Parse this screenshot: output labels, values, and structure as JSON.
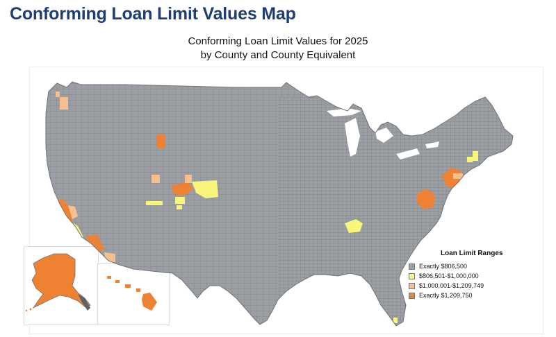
{
  "page": {
    "title": "Conforming Loan Limit Values Map"
  },
  "map": {
    "title_line1": "Conforming Loan Limit Values for 2025",
    "title_line2": "by County and County Equivalent",
    "colors": {
      "base": "#9b9ea2",
      "border": "#6f7276",
      "range2": "#f8f57a",
      "range3": "#f5c08e",
      "range4": "#ee8232"
    }
  },
  "legend": {
    "title": "Loan Limit Ranges",
    "items": [
      {
        "label": "Exactly $806,500",
        "color": "#9b9ea2"
      },
      {
        "label": "$806,501-$1,000,000",
        "color": "#f8f57a"
      },
      {
        "label": "$1,000,001-$1,209,749",
        "color": "#f5c08e"
      },
      {
        "label": "Exactly $1,209,750",
        "color": "#ee8232"
      }
    ]
  }
}
